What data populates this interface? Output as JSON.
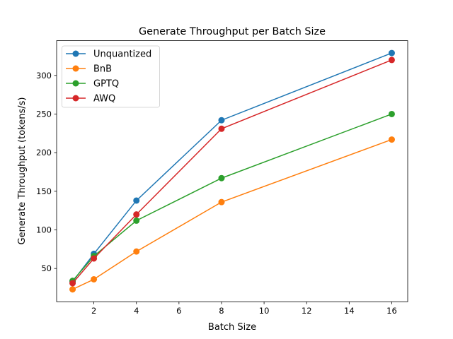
{
  "chart_data": {
    "type": "line",
    "title": "Generate Throughput per Batch Size",
    "xlabel": "Batch Size",
    "ylabel": "Generate Throughput (tokens/s)",
    "x": [
      1,
      2,
      4,
      8,
      16
    ],
    "xlim": [
      0.25,
      16.75
    ],
    "ylim": [
      7,
      345
    ],
    "xticks": [
      2,
      4,
      6,
      8,
      10,
      12,
      14,
      16
    ],
    "yticks": [
      50,
      100,
      150,
      200,
      250,
      300
    ],
    "grid": false,
    "legend_position": "top-left",
    "series": [
      {
        "name": "Unquantized",
        "color": "#1f77b4",
        "values": [
          33,
          69,
          138,
          242,
          329
        ]
      },
      {
        "name": "BnB",
        "color": "#ff7f0e",
        "values": [
          23,
          36,
          72,
          136,
          217
        ]
      },
      {
        "name": "GPTQ",
        "color": "#2ca02c",
        "values": [
          34,
          66,
          112,
          167,
          250
        ]
      },
      {
        "name": "AWQ",
        "color": "#d62728",
        "values": [
          31,
          63,
          120,
          231,
          320
        ]
      }
    ]
  }
}
